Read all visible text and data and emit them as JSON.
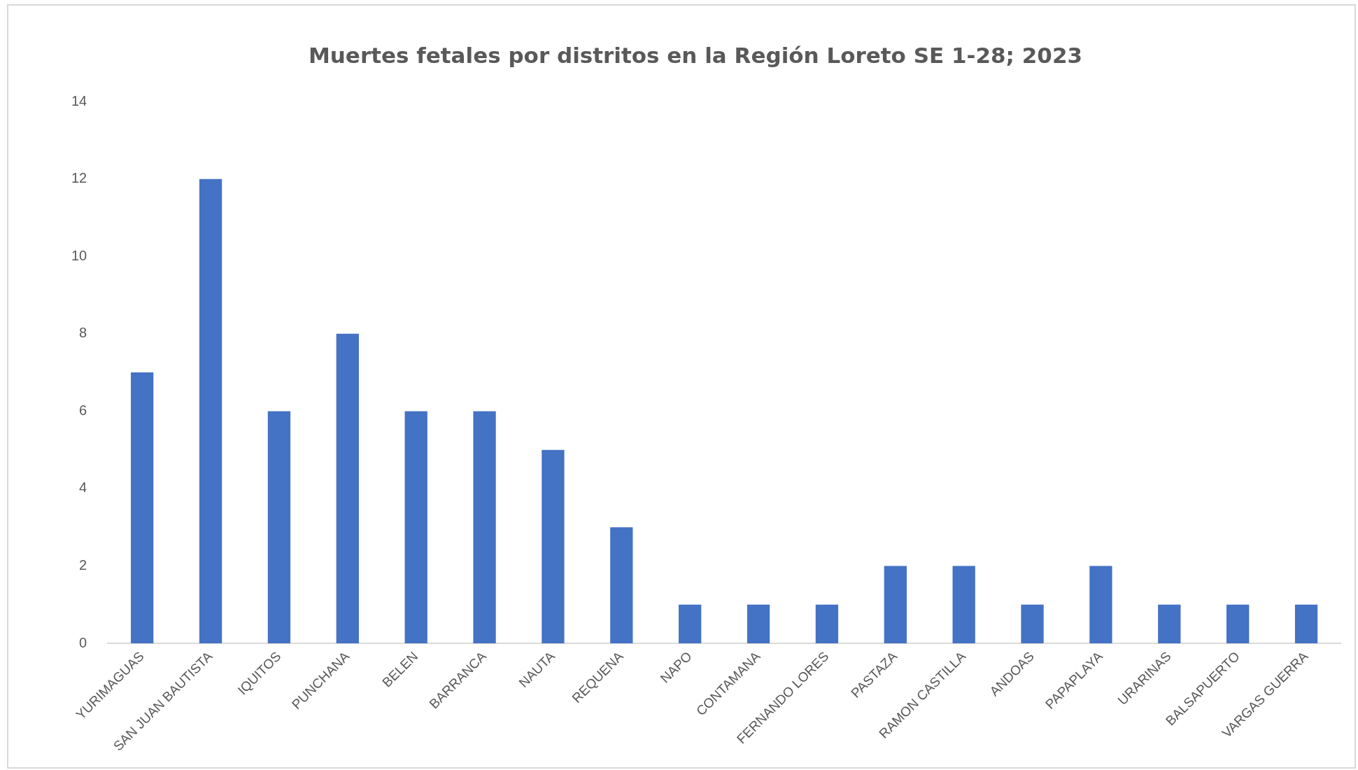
{
  "chart_data": {
    "type": "bar",
    "title": "Muertes fetales por distritos en la Región Loreto SE 1-28; 2023",
    "categories": [
      "YURIMAGUAS",
      "SAN JUAN BAUTISTA",
      "IQUITOS",
      "PUNCHANA",
      "BELEN",
      "BARRANCA",
      "NAUTA",
      "REQUENA",
      "NAPO",
      "CONTAMANA",
      "FERNANDO LORES",
      "PASTAZA",
      "RAMON CASTILLA",
      "ANDOAS",
      "PAPAPLAYA",
      "URARINAS",
      "BALSAPUERTO",
      "VARGAS GUERRA"
    ],
    "values": [
      7,
      12,
      6,
      8,
      6,
      6,
      5,
      3,
      1,
      1,
      1,
      2,
      2,
      1,
      2,
      1,
      1,
      1
    ],
    "color": "#4472c4",
    "ylim": [
      0,
      14
    ],
    "yticks": [
      0,
      2,
      4,
      6,
      8,
      10,
      12,
      14
    ],
    "grid": false,
    "legend": false
  }
}
